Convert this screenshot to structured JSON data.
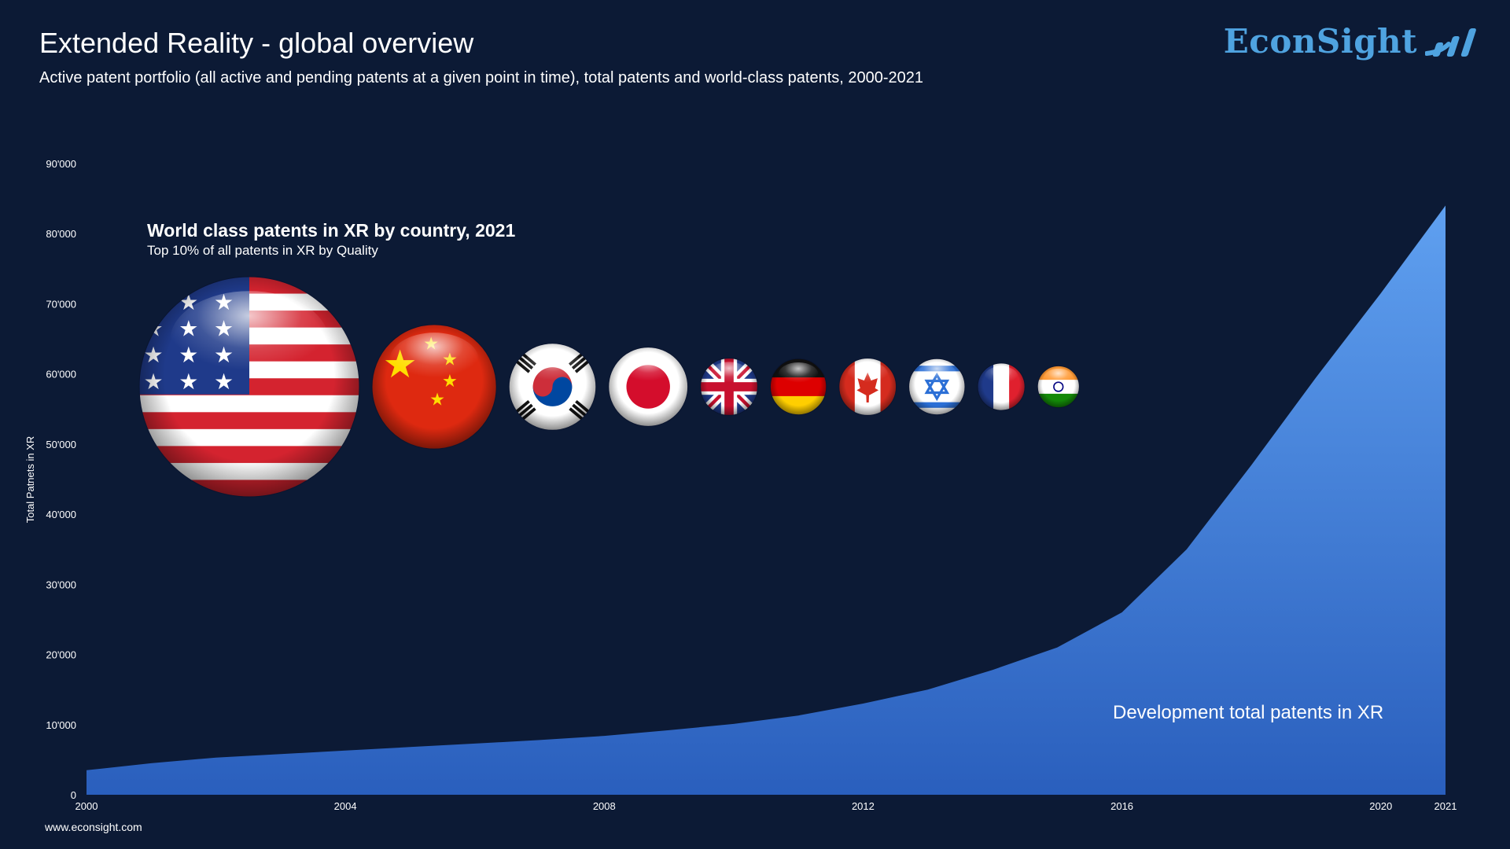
{
  "header": {
    "title": "Extended Reality - global overview",
    "subtitle": "Active patent portfolio (all active and pending patents at a given point in time), total patents and world-class patents, 2000-2021"
  },
  "brand": {
    "name": "EconSight",
    "icon": "bar-chart-swoosh-icon",
    "color": "#4fa3e0"
  },
  "footer": {
    "url": "www.econsight.com"
  },
  "colors": {
    "background": "#0c1a35",
    "area_top": "#5fa0f0",
    "area_bottom": "#2a5fbd"
  },
  "chart_data": {
    "type": "area",
    "title": "",
    "xlabel": "",
    "ylabel": "Total Patnets in XR",
    "ylim": [
      0,
      90000
    ],
    "xlim": [
      2000,
      2021
    ],
    "y_ticks": [
      "0",
      "10'000",
      "20'000",
      "30'000",
      "40'000",
      "50'000",
      "60'000",
      "70'000",
      "80'000",
      "90'000"
    ],
    "y_tick_values": [
      0,
      10000,
      20000,
      30000,
      40000,
      50000,
      60000,
      70000,
      80000,
      90000
    ],
    "x_ticks": [
      "2000",
      "2004",
      "2008",
      "2012",
      "2016",
      "2020",
      "2021"
    ],
    "x_tick_values": [
      2000,
      2004,
      2008,
      2012,
      2016,
      2020,
      2021
    ],
    "grid": false,
    "series": [
      {
        "name": "Development total patents in XR",
        "x": [
          2000,
          2001,
          2002,
          2003,
          2004,
          2005,
          2006,
          2007,
          2008,
          2009,
          2010,
          2011,
          2012,
          2013,
          2014,
          2015,
          2016,
          2017,
          2018,
          2019,
          2020,
          2021
        ],
        "values": [
          3500,
          4500,
          5300,
          5800,
          6300,
          6800,
          7300,
          7800,
          8400,
          9200,
          10100,
          11300,
          13000,
          15000,
          17800,
          21000,
          26000,
          35000,
          47000,
          59500,
          71500,
          84000
        ]
      }
    ],
    "inset": {
      "title": "World class patents in XR by country, 2021",
      "subtitle": "Top 10% of all patents in XR by Quality",
      "countries": [
        {
          "name": "USA",
          "flag": "usa-flag-icon",
          "relative_size": 1.0
        },
        {
          "name": "China",
          "flag": "china-flag-icon",
          "relative_size": 0.565
        },
        {
          "name": "South Korea",
          "flag": "south-korea-flag-icon",
          "relative_size": 0.395
        },
        {
          "name": "Japan",
          "flag": "japan-flag-icon",
          "relative_size": 0.36
        },
        {
          "name": "United Kingdom",
          "flag": "uk-flag-icon",
          "relative_size": 0.26
        },
        {
          "name": "Germany",
          "flag": "germany-flag-icon",
          "relative_size": 0.255
        },
        {
          "name": "Canada",
          "flag": "canada-flag-icon",
          "relative_size": 0.26
        },
        {
          "name": "Israel",
          "flag": "israel-flag-icon",
          "relative_size": 0.255
        },
        {
          "name": "France",
          "flag": "france-flag-icon",
          "relative_size": 0.215
        },
        {
          "name": "India",
          "flag": "india-flag-icon",
          "relative_size": 0.19
        }
      ]
    }
  }
}
